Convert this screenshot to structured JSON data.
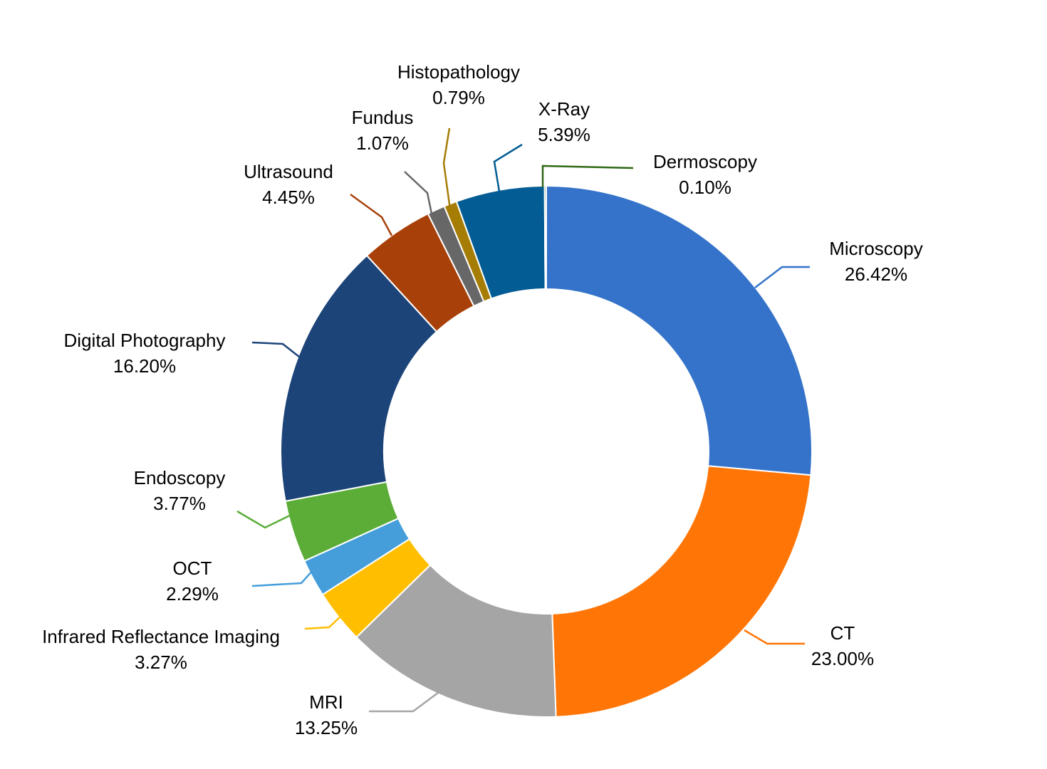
{
  "chart_data": {
    "type": "pie",
    "donut": true,
    "title": "",
    "legend": "none",
    "start": "top, clockwise",
    "slices": [
      {
        "name": "Microscopy",
        "pct": 26.42,
        "label": "26.42%",
        "color": "#3473C9"
      },
      {
        "name": "CT",
        "pct": 23.0,
        "label": "23.00%",
        "color": "#FF7607"
      },
      {
        "name": "MRI",
        "pct": 13.25,
        "label": "13.25%",
        "color": "#A5A5A5"
      },
      {
        "name": "Infrared Reflectance Imaging",
        "pct": 3.27,
        "label": "3.27%",
        "color": "#FFBF00"
      },
      {
        "name": "OCT",
        "pct": 2.29,
        "label": "2.29%",
        "color": "#459DDA"
      },
      {
        "name": "Endoscopy",
        "pct": 3.77,
        "label": "3.77%",
        "color": "#5BAD38"
      },
      {
        "name": "Digital Photography",
        "pct": 16.2,
        "label": "16.20%",
        "color": "#1C4479"
      },
      {
        "name": "Ultrasound",
        "pct": 4.45,
        "label": "4.45%",
        "color": "#A8400A"
      },
      {
        "name": "Fundus",
        "pct": 1.07,
        "label": "1.07%",
        "color": "#676767"
      },
      {
        "name": "Histopathology",
        "pct": 0.79,
        "label": "0.79%",
        "color": "#A57D05"
      },
      {
        "name": "X-Ray",
        "pct": 5.39,
        "label": "5.39%",
        "color": "#035C94"
      },
      {
        "name": "Dermoscopy",
        "pct": 0.1,
        "label": "0.10%",
        "color": "#2E6915"
      }
    ]
  }
}
